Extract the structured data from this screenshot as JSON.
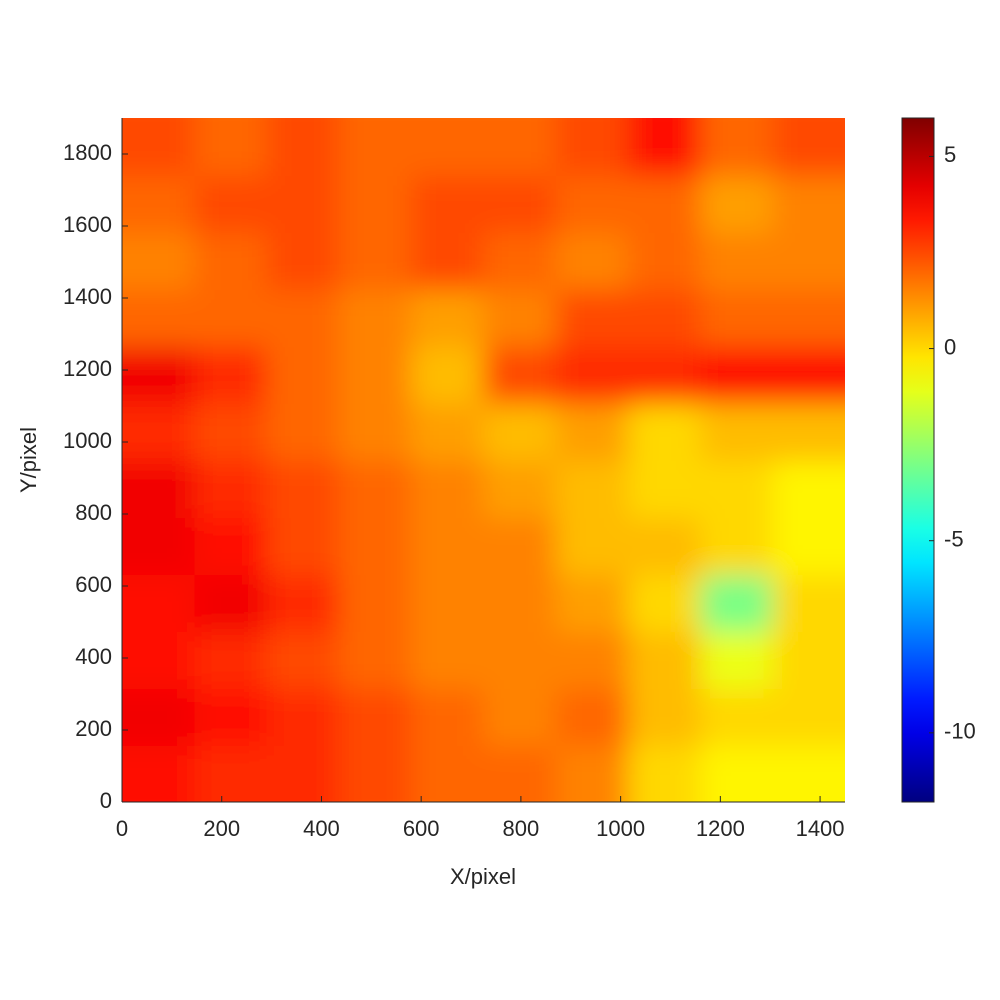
{
  "chart_data": {
    "type": "heatmap",
    "x_label": "X/pixel",
    "y_label": "Y/pixel",
    "xlim": [
      0,
      1450
    ],
    "ylim": [
      0,
      1900
    ],
    "xticks": [
      0,
      200,
      400,
      600,
      800,
      1000,
      1200,
      1400
    ],
    "yticks": [
      0,
      200,
      400,
      600,
      800,
      1000,
      1200,
      1400,
      1600,
      1800
    ],
    "colormap": "jet",
    "clim": [
      -11.8,
      6
    ],
    "cticks": [
      5,
      0,
      -5,
      -10
    ],
    "z": [
      [
        3.5,
        3,
        3,
        2.5,
        2,
        2,
        1.5,
        0,
        -0.5,
        -0.5
      ],
      [
        4,
        3.5,
        3,
        2.5,
        2,
        1.5,
        2,
        0.5,
        0,
        0
      ],
      [
        3.5,
        3,
        2.5,
        2,
        1.5,
        1.5,
        1.5,
        0.5,
        -1,
        0
      ],
      [
        3.5,
        4,
        3,
        2,
        1.5,
        1.5,
        1,
        0,
        -3,
        0
      ],
      [
        4,
        3.5,
        2.5,
        2,
        1.5,
        1.5,
        0.5,
        0.5,
        0,
        -0.5
      ],
      [
        4,
        3,
        2.5,
        2,
        1.5,
        1,
        0.5,
        0,
        0,
        -0.5
      ],
      [
        3,
        2.5,
        2,
        1.5,
        1,
        0.5,
        1,
        0,
        0.5,
        0.5
      ],
      [
        4,
        3,
        2,
        1.5,
        0.5,
        2.5,
        3,
        3,
        3.5,
        3.5
      ],
      [
        2,
        2,
        2,
        1.5,
        1,
        1.5,
        2.5,
        2.5,
        2,
        2
      ],
      [
        1.5,
        2,
        2.5,
        2,
        2.5,
        2,
        1.5,
        2,
        1.5,
        1.5
      ],
      [
        2,
        2.5,
        2.5,
        2,
        2.5,
        2.5,
        2,
        2,
        1,
        1.5
      ],
      [
        2.5,
        2,
        2.5,
        2,
        2,
        2,
        2.5,
        3.5,
        2,
        2.5
      ]
    ]
  }
}
